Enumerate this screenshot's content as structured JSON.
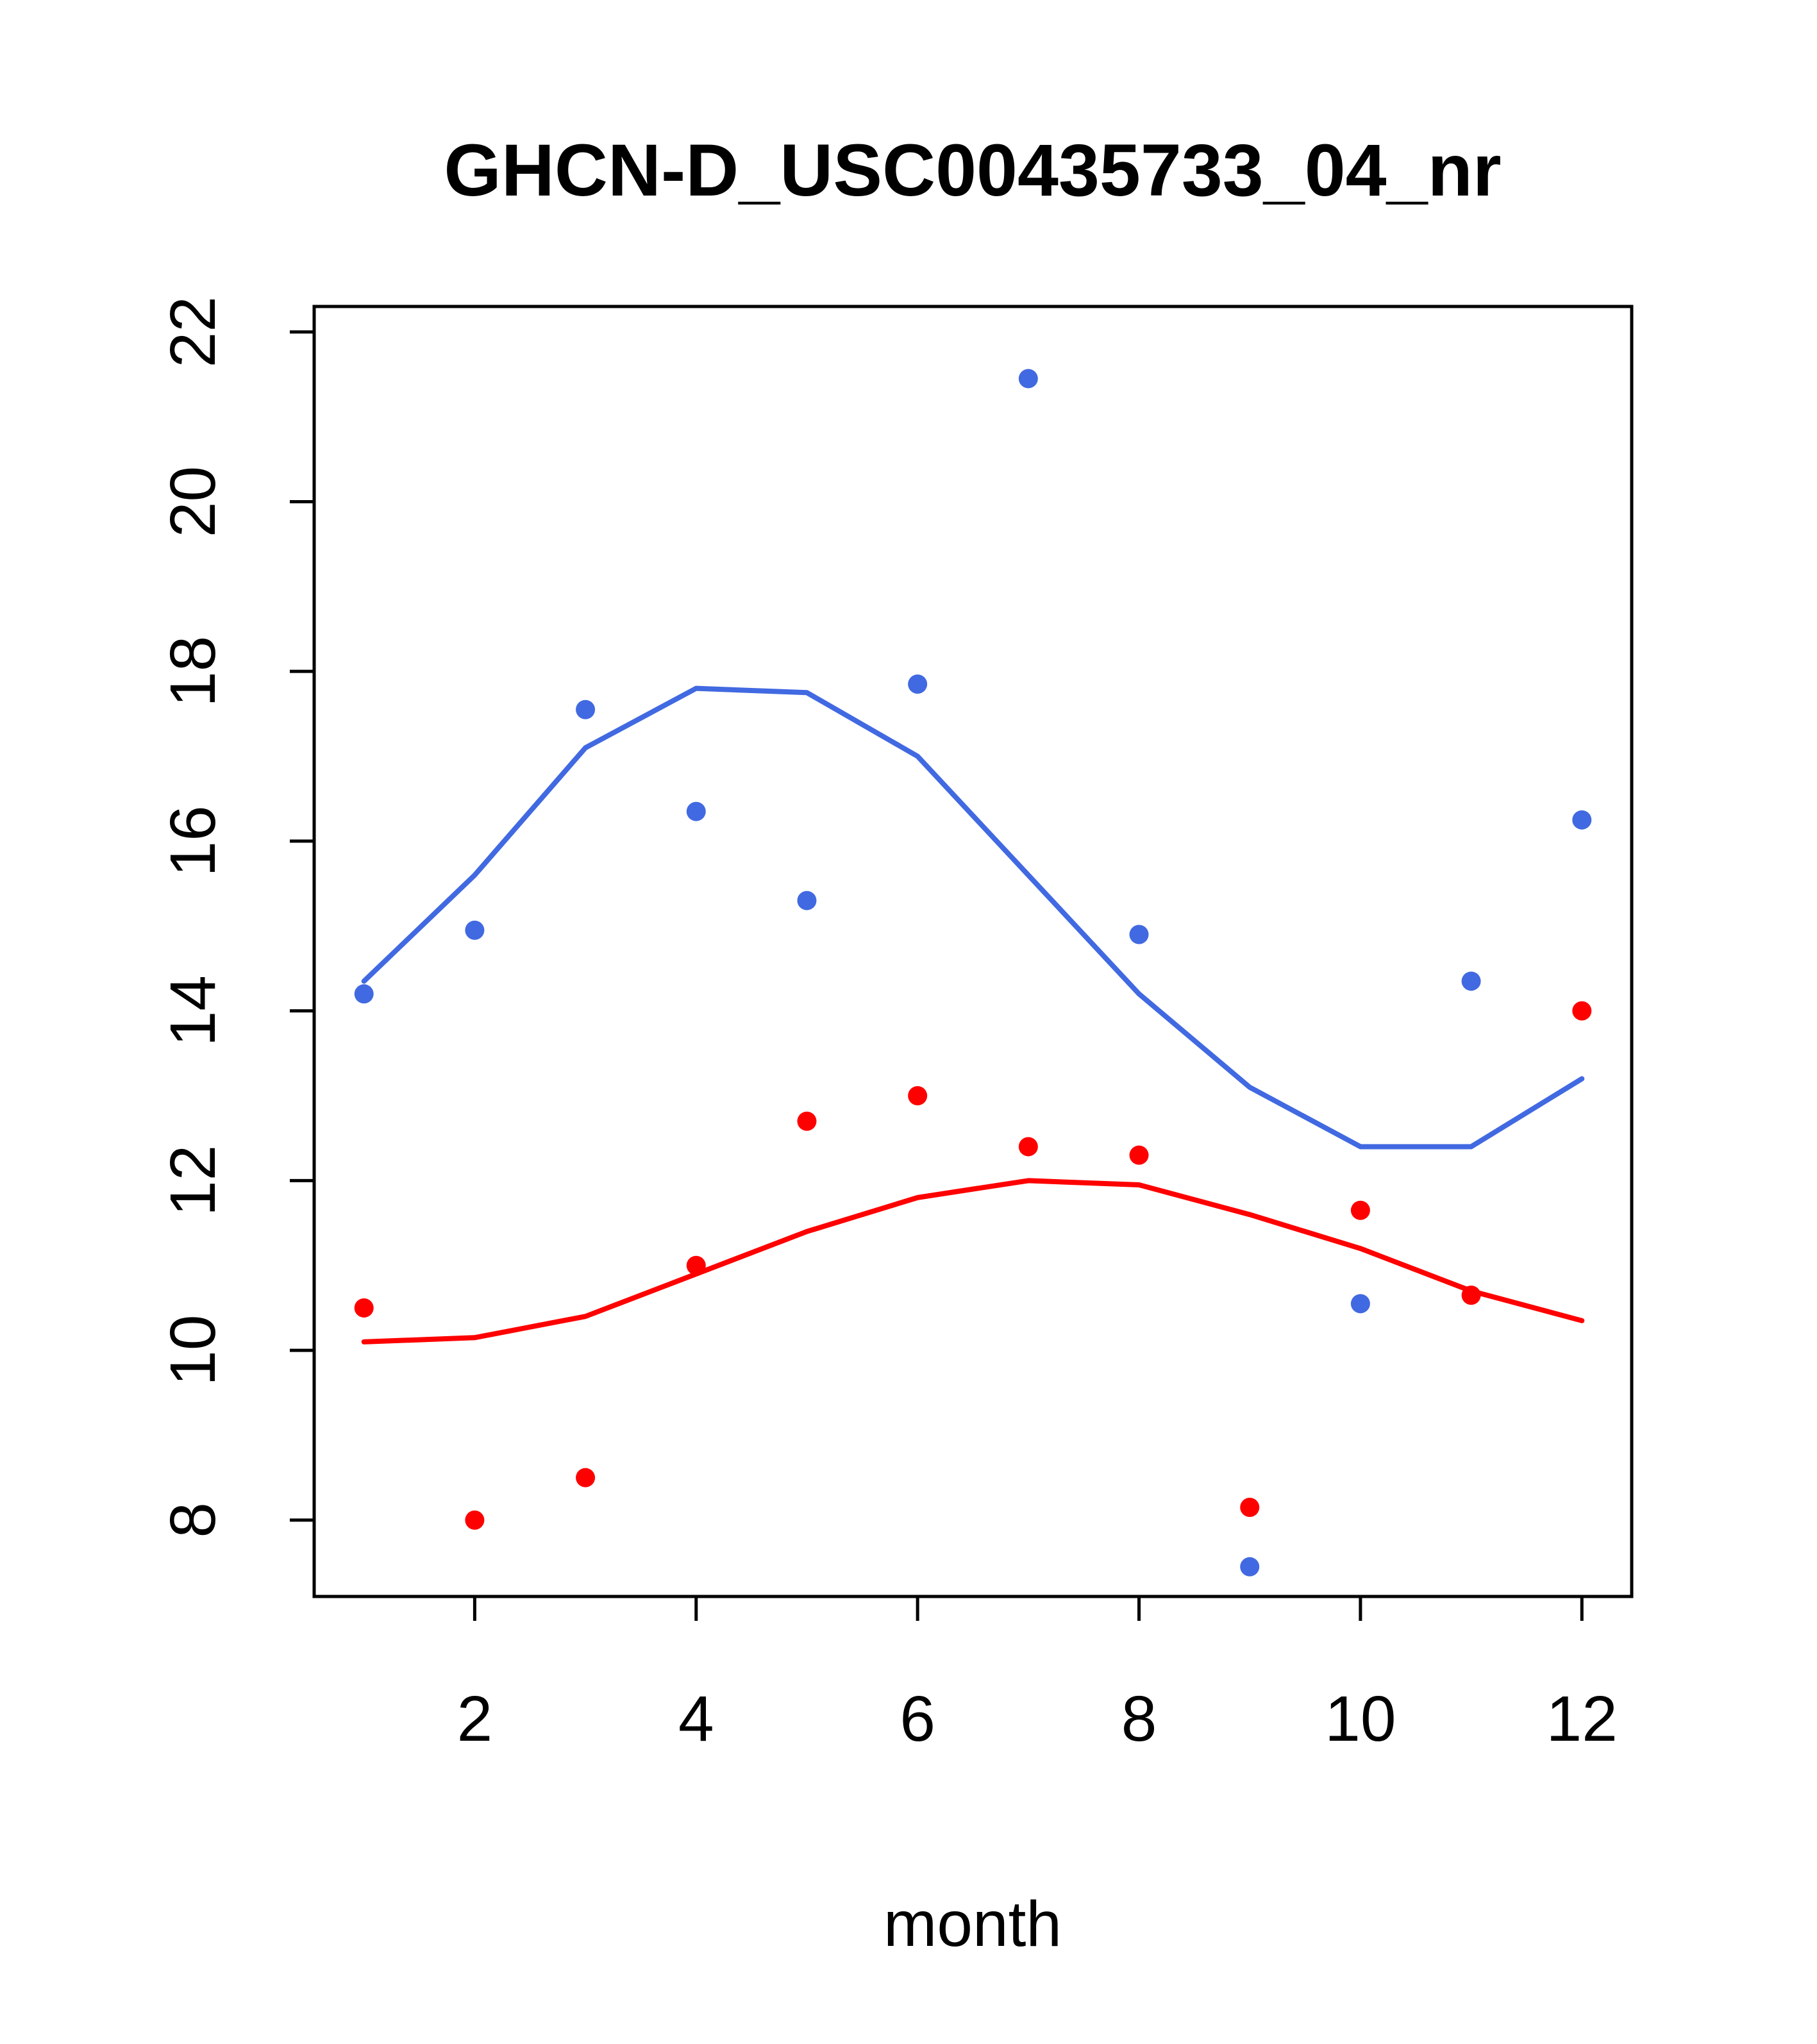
{
  "chart_data": {
    "type": "scatter",
    "title": "GHCN-D_USC00435733_04_nr",
    "xlabel": "month",
    "ylabel": "",
    "x_ticks": [
      2,
      4,
      6,
      8,
      10,
      12
    ],
    "y_ticks": [
      8,
      10,
      12,
      14,
      16,
      18,
      20,
      22
    ],
    "xlim": [
      0.55,
      12.45
    ],
    "ylim": [
      7.1,
      22.3
    ],
    "grid": false,
    "legend": "none",
    "months": [
      1,
      2,
      3,
      4,
      5,
      6,
      7,
      8,
      9,
      10,
      11,
      12
    ],
    "colors": {
      "series1": "#4169E1",
      "series2": "#FF0000",
      "axis": "#000000"
    },
    "series": [
      {
        "name": "blue-points",
        "kind": "points",
        "color": "#4169E1",
        "values": [
          14.2,
          14.95,
          17.55,
          16.35,
          15.3,
          17.85,
          21.45,
          14.9,
          7.45,
          10.55,
          14.35,
          16.25
        ]
      },
      {
        "name": "blue-smooth-line",
        "kind": "line",
        "color": "#4169E1",
        "values": [
          14.35,
          15.6,
          17.1,
          17.8,
          17.75,
          17.0,
          15.6,
          14.2,
          13.1,
          12.4,
          12.4,
          13.2
        ]
      },
      {
        "name": "red-points",
        "kind": "points",
        "color": "#FF0000",
        "values": [
          10.5,
          8.0,
          8.5,
          11.0,
          12.7,
          13.0,
          12.4,
          12.3,
          8.15,
          11.65,
          10.65,
          14.0
        ]
      },
      {
        "name": "red-smooth-line",
        "kind": "line",
        "color": "#FF0000",
        "values": [
          10.1,
          10.15,
          10.4,
          10.9,
          11.4,
          11.8,
          12.0,
          11.95,
          11.6,
          11.2,
          10.7,
          10.35
        ]
      }
    ]
  }
}
